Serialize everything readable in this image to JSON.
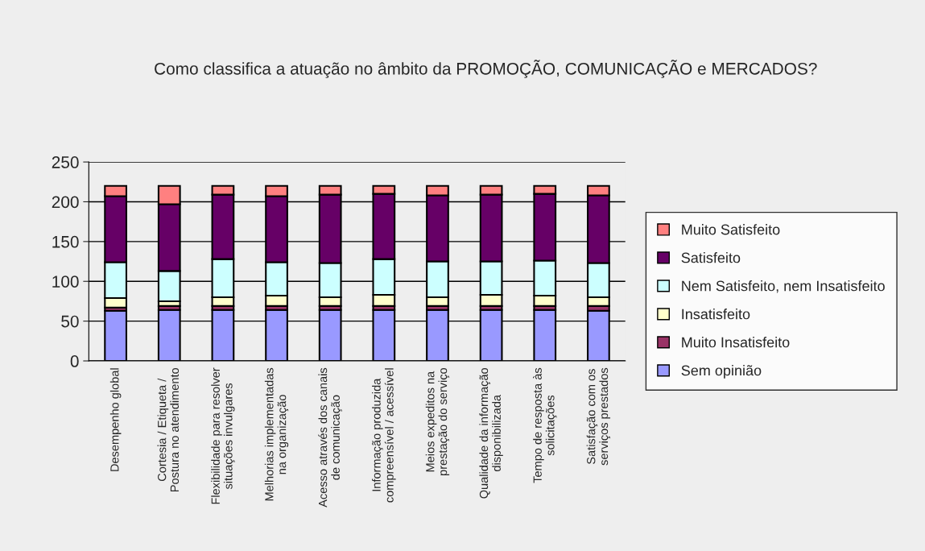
{
  "chart_data": {
    "type": "bar",
    "title": "Como classifica a atuação no âmbito da PROMOÇÃO, COMUNICAÇÃO e MERCADOS?",
    "categories": [
      "Desempenho global",
      "Cortesia / Etiqueta /\nPostura no atendimento",
      "Flexibilidade para resolver\nsituações invulgares",
      "Melhorias implementadas\nna organização",
      "Acesso através dos canais\nde comunicação",
      "Informação produzida\ncompreensível / acessível",
      "Meios expeditos na\nprestação do serviço",
      "Qualidade da informação\ndisponibilizada",
      "Tempo de resposta às\nsolicitações",
      "Satisfação com os\nserviços prestados"
    ],
    "stacked": true,
    "ylim": [
      0,
      250
    ],
    "yticks": [
      0,
      50,
      100,
      150,
      200,
      250
    ],
    "grid": "y",
    "legend": "right",
    "series": [
      {
        "name": "Sem opinião",
        "color": "#9999ff",
        "values": [
          63,
          64,
          64,
          64,
          64,
          64,
          64,
          64,
          64,
          63
        ]
      },
      {
        "name": "Muito Insatisfeito",
        "color": "#993366",
        "values": [
          4,
          5,
          5,
          5,
          5,
          5,
          5,
          5,
          5,
          6
        ]
      },
      {
        "name": "Insatisfeito",
        "color": "#ffffcc",
        "values": [
          12,
          6,
          11,
          13,
          11,
          14,
          11,
          14,
          13,
          11
        ]
      },
      {
        "name": "Nem Satisfeito, nem Insatisfeito",
        "color": "#ccffff",
        "values": [
          45,
          38,
          48,
          42,
          43,
          45,
          45,
          42,
          44,
          43
        ]
      },
      {
        "name": "Satisfeito",
        "color": "#660066",
        "values": [
          83,
          84,
          81,
          83,
          86,
          82,
          83,
          84,
          84,
          85
        ]
      },
      {
        "name": "Muito Satisfeito",
        "color": "#ff8080",
        "values": [
          13,
          23,
          11,
          13,
          11,
          10,
          12,
          11,
          10,
          12
        ]
      }
    ]
  }
}
